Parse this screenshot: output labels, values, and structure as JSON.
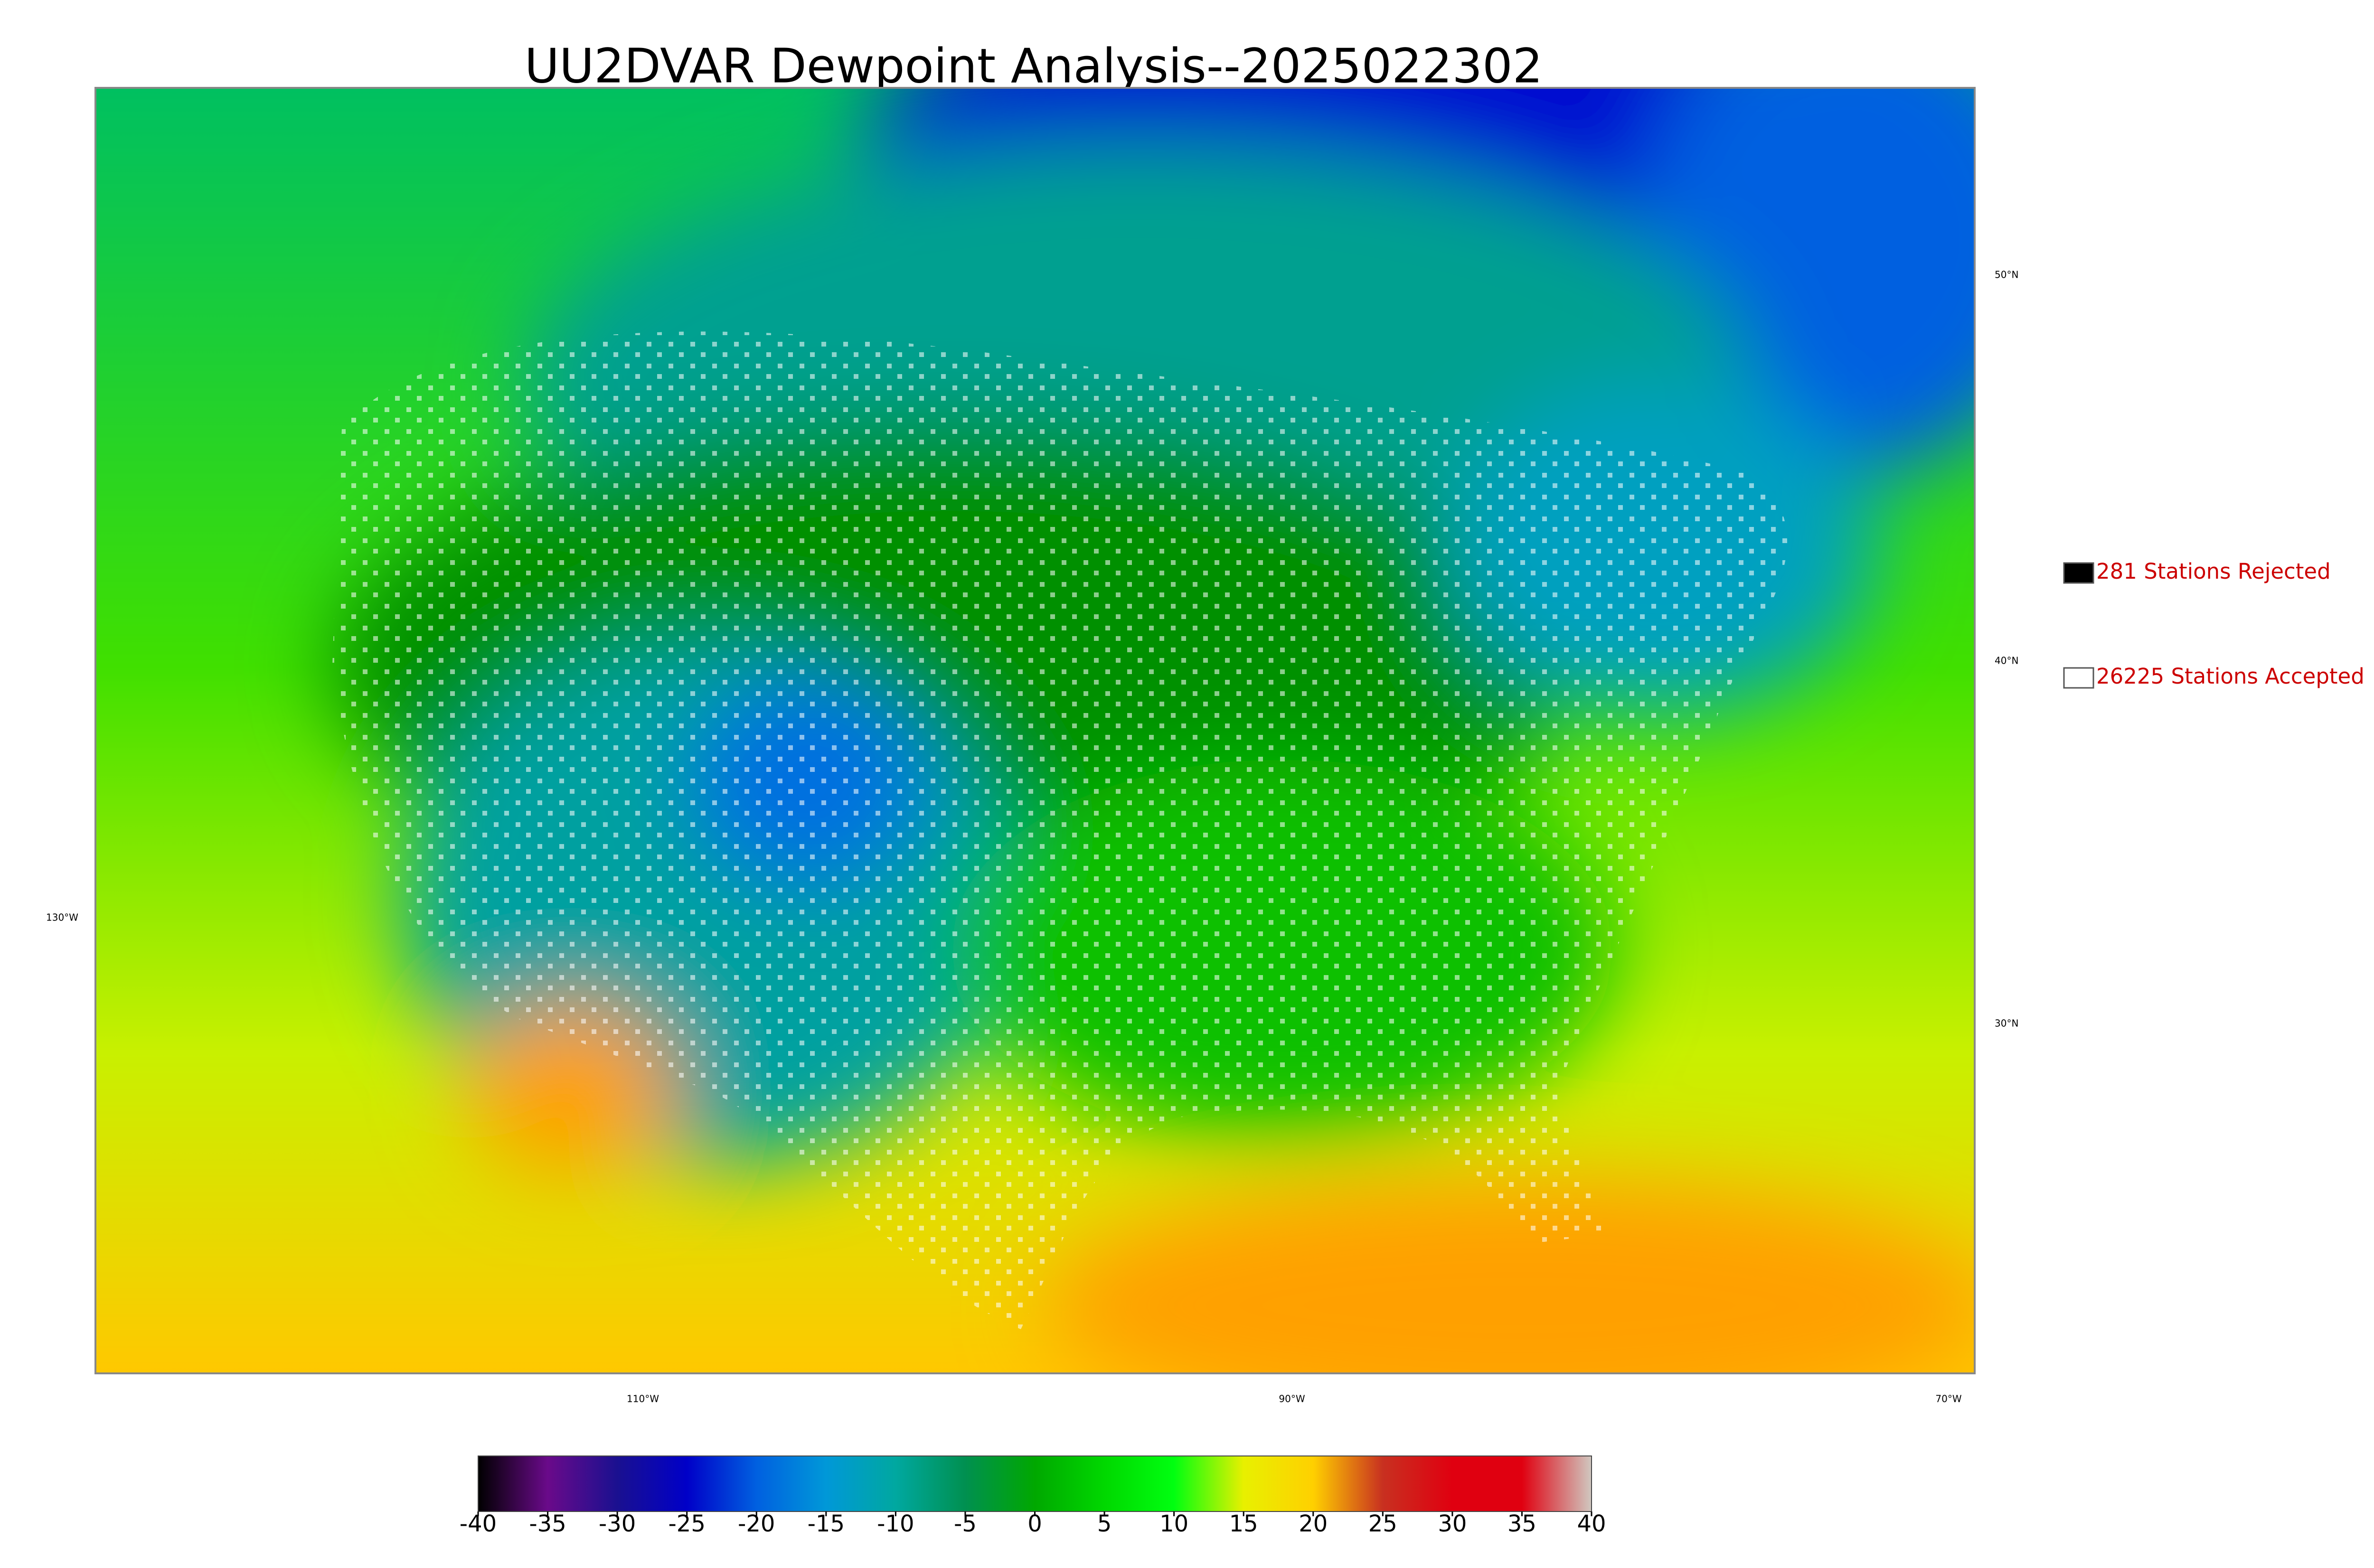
{
  "title": "UU2DVAR Dewpoint Analysis--2025022302",
  "legend": [
    {
      "label": "281 Stations Rejected",
      "color": "#000000"
    },
    {
      "label": "26225 Stations Accepted",
      "color": "#ffffff"
    }
  ],
  "lat_labels": [
    "50°N",
    "40°N",
    "30°N"
  ],
  "lon_labels": [
    "130°W",
    "110°W",
    "90°W",
    "70°W"
  ],
  "colorbar": {
    "range": [
      -40,
      40
    ],
    "ticks": [
      -40,
      -35,
      -30,
      -25,
      -20,
      -15,
      -10,
      -5,
      0,
      5,
      10,
      15,
      20,
      25,
      30,
      35,
      40
    ],
    "colors": [
      "#000000",
      "#6a0a8a",
      "#1a1090",
      "#0000c8",
      "#0060e0",
      "#0098d8",
      "#00a8a0",
      "#009050",
      "#00a800",
      "#00d800",
      "#00ff10",
      "#e8f000",
      "#ffd000",
      "#c83020",
      "#e00010",
      "#e00010",
      "#d0c8c0"
    ]
  }
}
